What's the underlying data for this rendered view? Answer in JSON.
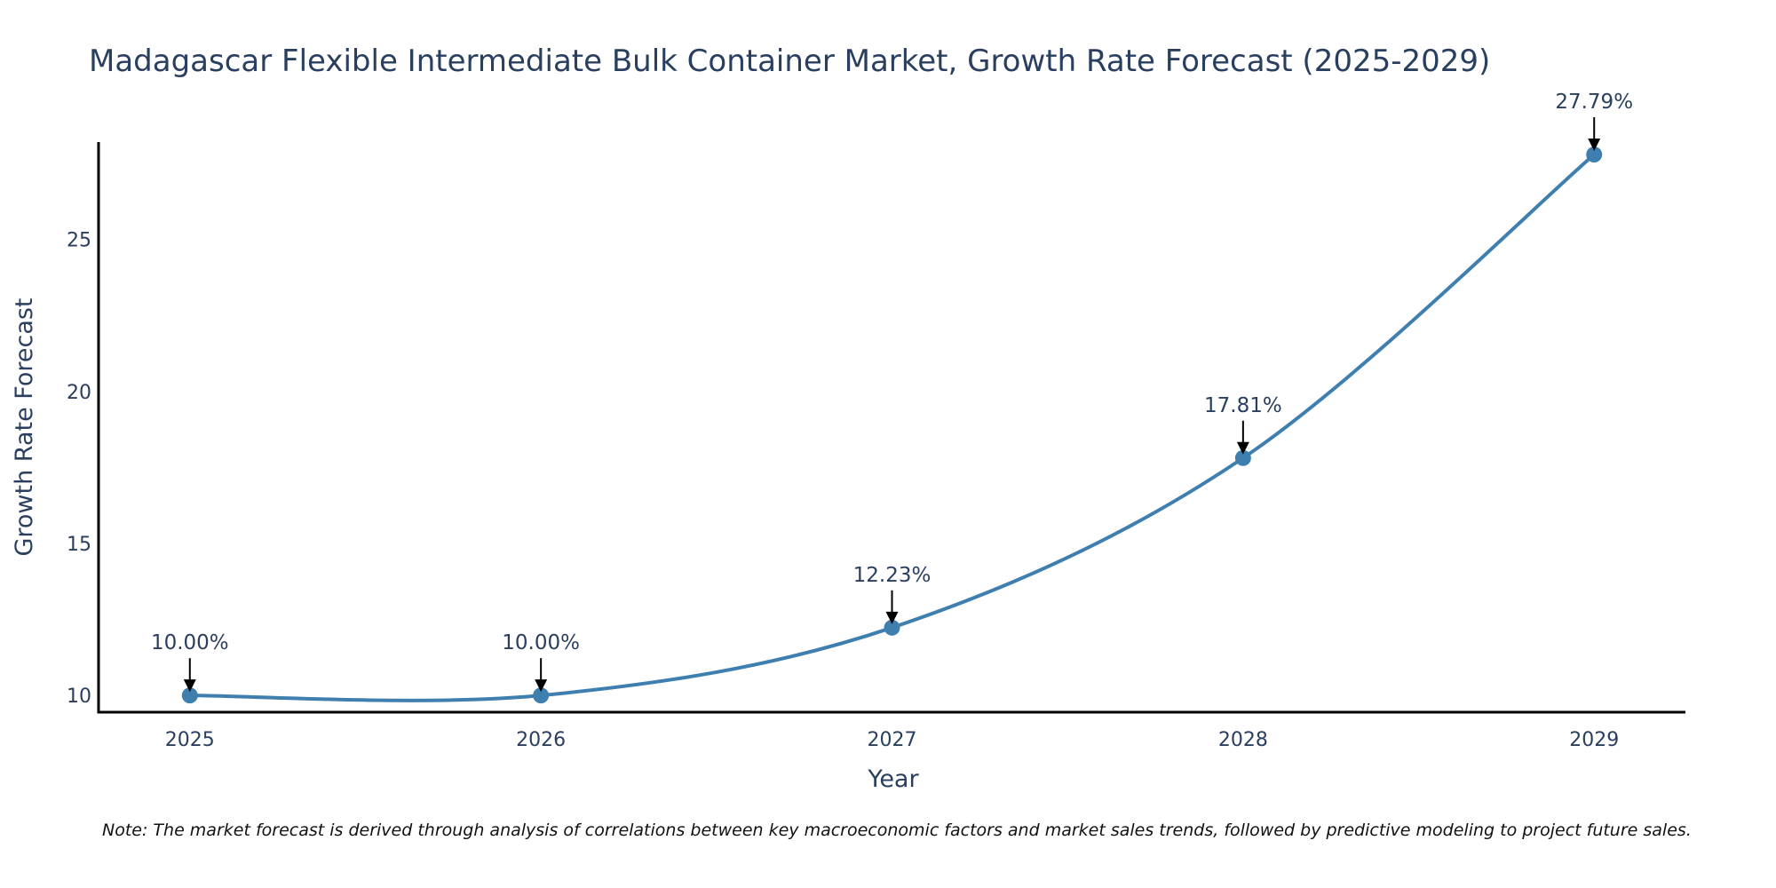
{
  "chart_data": {
    "type": "line",
    "title": "Madagascar Flexible Intermediate Bulk Container Market, Growth Rate Forecast (2025-2029)",
    "xlabel": "Year",
    "ylabel": "Growth Rate Forecast",
    "x": [
      2025,
      2026,
      2027,
      2028,
      2029
    ],
    "series": [
      {
        "name": "Growth Rate Forecast",
        "values": [
          10.0,
          10.0,
          12.23,
          17.81,
          27.79
        ],
        "color": "#3f7fb0"
      }
    ],
    "annotations": [
      "10.00%",
      "10.00%",
      "12.23%",
      "17.81%",
      "27.79%"
    ],
    "x_ticks": [
      "2025",
      "2026",
      "2027",
      "2028",
      "2029"
    ],
    "y_ticks": [
      10,
      15,
      20,
      25
    ],
    "y_tick_labels": [
      "10",
      "15",
      "20",
      "25"
    ],
    "xlim": [
      2024.74,
      2029.26
    ],
    "ylim": [
      9.45,
      28.2
    ],
    "grid": false,
    "legend": "none",
    "line_shape": "spline",
    "note": "Note: The market forecast is derived through analysis of correlations between key macroeconomic factors and market sales trends, followed by predictive modeling to project future sales."
  }
}
